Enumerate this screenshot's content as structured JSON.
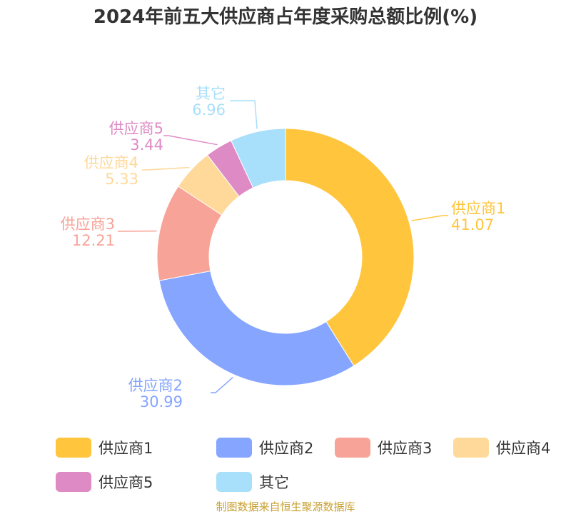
{
  "chart_data": {
    "type": "pie",
    "title": "2024年前五大供应商占年度采购总额比例(%)",
    "categories": [
      "供应商1",
      "供应商2",
      "供应商3",
      "供应商4",
      "供应商5",
      "其它"
    ],
    "values": [
      41.07,
      30.99,
      12.21,
      5.33,
      3.44,
      6.96
    ],
    "value_labels": [
      "41.07",
      "30.99",
      "12.21",
      "5.33",
      "3.44",
      "6.96"
    ],
    "colors": [
      "#ffc53d",
      "#85a5ff",
      "#f8a398",
      "#ffd99a",
      "#de8bc5",
      "#a8dffa"
    ],
    "donut": true,
    "legend_position": "bottom"
  },
  "source_note": "制图数据来自恒生聚源数据库"
}
